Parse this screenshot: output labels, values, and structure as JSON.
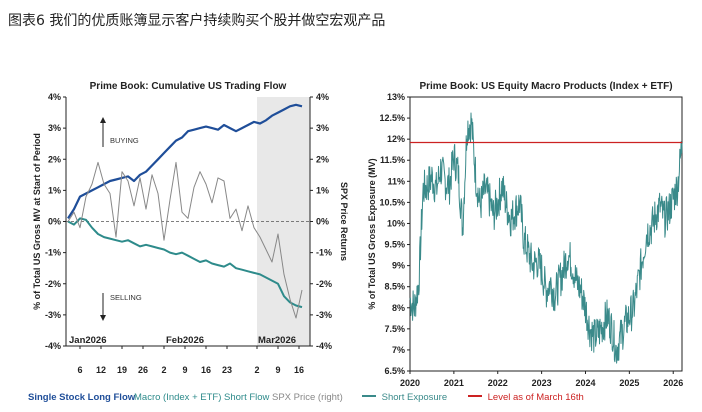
{
  "page_title": "图表6 我们的优质账簿显示客户持续购买个股并做空宏观产品",
  "colors": {
    "long_flow": "#1f4e99",
    "short_flow": "#2e8b8b",
    "spx": "#888888",
    "exposure": "#3a8a8a",
    "level_line": "#cc2222",
    "shade": "#e8e8e8"
  },
  "chart_data": [
    {
      "type": "line",
      "title": "Prime Book: Cumulative US Trading Flow",
      "ylabel": "% of Total US Gross MV at Start of Period",
      "y2label": "SPX Price Returns",
      "ylim": [
        -4,
        4
      ],
      "y2lim": [
        -4,
        4
      ],
      "yticks": [
        "4%",
        "3%",
        "2%",
        "1%",
        "0%",
        "-1%",
        "-2%",
        "-3%",
        "-4%"
      ],
      "y2ticks": [
        "4%",
        "3%",
        "2%",
        "1%",
        "0%",
        "-1%",
        "-2%",
        "-3%",
        "-4%"
      ],
      "month_labels": [
        "Jan2026",
        "Feb2026",
        "Mar2026"
      ],
      "day_ticks": [
        "6",
        "12",
        "19",
        "26",
        "2",
        "9",
        "16",
        "23",
        "2",
        "9",
        "16"
      ],
      "annotations": {
        "buying": "BUYING",
        "selling": "SELLING"
      },
      "shaded_region_label": "Mar2026",
      "series": [
        {
          "name": "Single Stock Long Flow",
          "axis": "left",
          "values": [
            0.1,
            0.4,
            0.8,
            0.9,
            1.0,
            1.1,
            1.2,
            1.3,
            1.35,
            1.4,
            1.45,
            1.3,
            1.5,
            1.6,
            1.8,
            2.0,
            2.2,
            2.4,
            2.6,
            2.7,
            2.9,
            2.95,
            3.0,
            3.05,
            3.0,
            2.95,
            3.1,
            3.0,
            2.9,
            3.0,
            3.1,
            3.2,
            3.15,
            3.25,
            3.4,
            3.5,
            3.6,
            3.7,
            3.75,
            3.7
          ]
        },
        {
          "name": "Macro (Index + ETF) Short Flow",
          "axis": "left",
          "values": [
            0.0,
            -0.1,
            0.1,
            0.05,
            -0.2,
            -0.4,
            -0.5,
            -0.55,
            -0.6,
            -0.65,
            -0.6,
            -0.7,
            -0.8,
            -0.75,
            -0.8,
            -0.85,
            -0.9,
            -1.0,
            -1.05,
            -1.0,
            -1.1,
            -1.2,
            -1.3,
            -1.25,
            -1.35,
            -1.4,
            -1.45,
            -1.35,
            -1.5,
            -1.55,
            -1.6,
            -1.65,
            -1.7,
            -1.8,
            -1.9,
            -2.0,
            -2.4,
            -2.6,
            -2.7,
            -2.75
          ]
        },
        {
          "name": "SPX Price (right)",
          "axis": "right",
          "values": [
            0.0,
            0.3,
            -0.2,
            0.8,
            1.2,
            1.9,
            1.2,
            0.9,
            -0.5,
            1.6,
            1.3,
            0.5,
            1.4,
            0.4,
            1.5,
            0.9,
            -0.6,
            0.7,
            1.9,
            0.3,
            0.1,
            1.1,
            1.6,
            1.2,
            0.6,
            1.4,
            1.3,
            0.1,
            0.4,
            -0.3,
            0.5,
            -0.2,
            -0.5,
            -0.9,
            -1.3,
            -0.4,
            -1.7,
            -2.5,
            -3.1,
            -2.2
          ]
        }
      ]
    },
    {
      "type": "line",
      "title": "Prime Book: US Equity Macro Products (Index + ETF)",
      "ylabel": "% of Total US Gross Exposure (MV)",
      "ylim": [
        6.5,
        13
      ],
      "yticks": [
        "13%",
        "12.5%",
        "12%",
        "11.5%",
        "11%",
        "10.5%",
        "10%",
        "9.5%",
        "9%",
        "8.5%",
        "8%",
        "7.5%",
        "7%",
        "6.5%"
      ],
      "xlabels": [
        "2020",
        "2021",
        "2022",
        "2023",
        "2024",
        "2025",
        "2026"
      ],
      "level_line": 11.92,
      "series": [
        {
          "name": "Short Exposure",
          "x_start": 2020.0,
          "x_end": 2026.2,
          "values": [
            8.2,
            8.0,
            8.6,
            10.8,
            10.9,
            11.1,
            10.8,
            11.3,
            11.0,
            10.9,
            11.6,
            11.2,
            9.9,
            12.3,
            12.4,
            11.1,
            10.4,
            10.8,
            10.6,
            10.2,
            10.5,
            10.9,
            10.4,
            10.1,
            10.3,
            10.5,
            9.6,
            9.3,
            9.0,
            9.1,
            8.9,
            8.4,
            8.6,
            8.3,
            8.6,
            8.9,
            9.3,
            9.0,
            8.6,
            8.4,
            8.0,
            7.5,
            7.3,
            7.4,
            7.6,
            7.8,
            7.5,
            7.0,
            7.3,
            7.6,
            7.8,
            8.0,
            8.6,
            9.2,
            9.8,
            9.9,
            10.2,
            10.4,
            10.1,
            10.3,
            10.6,
            10.9,
            11.9
          ]
        },
        {
          "name": "Level as of March 16th",
          "value": 11.92
        }
      ]
    }
  ]
}
